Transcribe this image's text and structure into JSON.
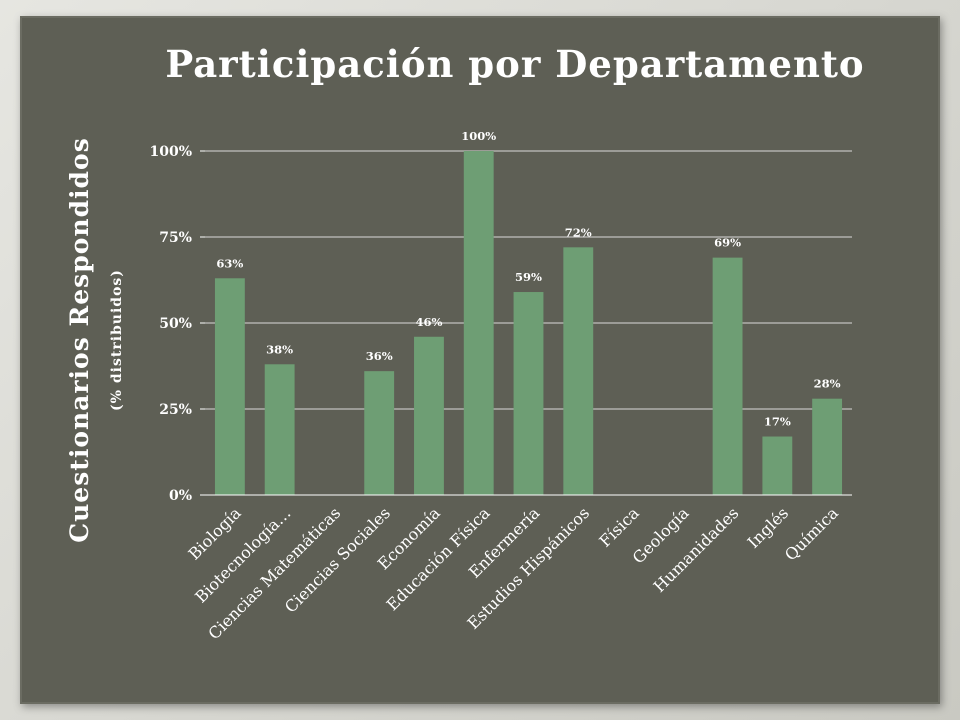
{
  "chart_data": {
    "type": "bar",
    "title": "Participación por Departamento",
    "ylabel": "Cuestionarios Respondidos",
    "ylabel_sub": "(% distribuidos)",
    "xlabel": "",
    "ylim": [
      0,
      100
    ],
    "yticks": [
      "0%",
      "25%",
      "50%",
      "75%",
      "100%"
    ],
    "grid": true,
    "legend": "none",
    "bar_color": "#6e9e74",
    "categories": [
      "Biología",
      "Biotecnología…",
      "Ciencias Matemáticas",
      "Ciencias Sociales",
      "Economía",
      "Educación Física",
      "Enfermería",
      "Estudios Hispánicos",
      "Física",
      "Geología",
      "Humanidades",
      "Inglés",
      "Química"
    ],
    "values": [
      63,
      38,
      null,
      36,
      46,
      100,
      59,
      72,
      null,
      null,
      69,
      17,
      28
    ],
    "data_labels": [
      "63%",
      "38%",
      "",
      "36%",
      "46%",
      "100%",
      "59%",
      "72%",
      "",
      "",
      "69%",
      "17%",
      "28%"
    ]
  }
}
